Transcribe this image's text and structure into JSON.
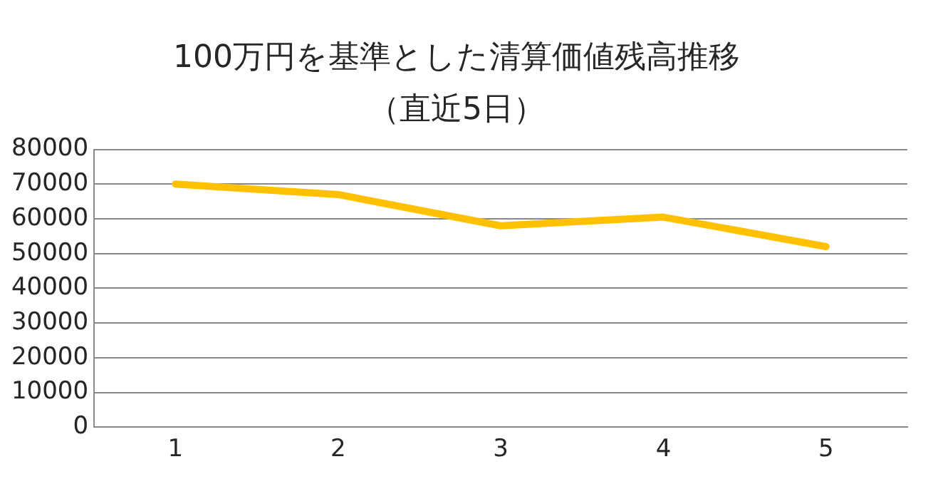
{
  "chart_data": {
    "type": "line",
    "title": "100万円を基準とした清算価値残高推移",
    "subtitle": "（直近5日）",
    "categories": [
      "1",
      "2",
      "3",
      "4",
      "5"
    ],
    "series": [
      {
        "color": "#ffc000",
        "values": [
          70000,
          67000,
          58000,
          60500,
          52000
        ]
      }
    ],
    "ylim": [
      0,
      80000
    ],
    "yticks": [
      0,
      10000,
      20000,
      30000,
      40000,
      50000,
      60000,
      70000,
      80000
    ],
    "grid": "y",
    "legend": false,
    "marker": "none"
  }
}
